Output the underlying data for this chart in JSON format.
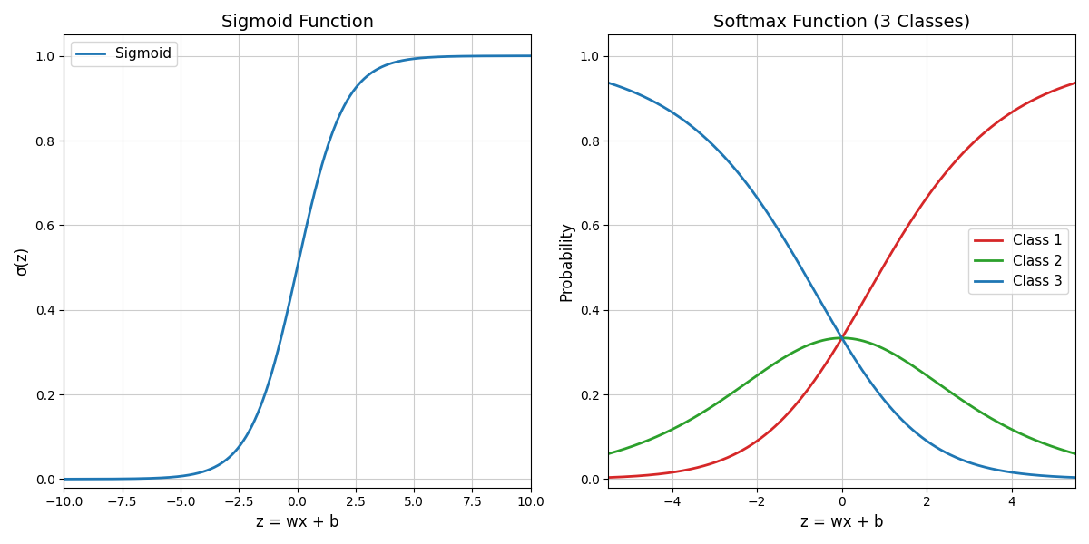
{
  "sigmoid_title": "Sigmoid Function",
  "sigmoid_xlabel": "z = wx + b",
  "sigmoid_ylabel": "σ(z)",
  "sigmoid_legend": "Sigmoid",
  "sigmoid_color": "#1f77b4",
  "sigmoid_xlim": [
    -10,
    10
  ],
  "sigmoid_ylim": [
    -0.02,
    1.05
  ],
  "sigmoid_xticks": [
    -10.0,
    -7.5,
    -5.0,
    -2.5,
    0.0,
    2.5,
    5.0,
    7.5,
    10.0
  ],
  "softmax_title": "Softmax Function (3 Classes)",
  "softmax_xlabel": "z = wx + b",
  "softmax_ylabel": "Probability",
  "softmax_xlim": [
    -5.5,
    5.5
  ],
  "softmax_ylim": [
    -0.02,
    1.05
  ],
  "softmax_xticks": [
    -4,
    -2,
    0,
    2,
    4
  ],
  "softmax_logit_scale": 0.5,
  "class1_color": "#d62728",
  "class2_color": "#2ca02c",
  "class3_color": "#1f77b4",
  "class1_label": "Class 1",
  "class2_label": "Class 2",
  "class3_label": "Class 3",
  "grid_color": "#cccccc",
  "background_color": "#ffffff",
  "title_fontsize": 14,
  "label_fontsize": 12,
  "tick_fontsize": 10,
  "legend_fontsize": 11,
  "line_width": 2.0,
  "figsize": [
    12.0,
    6.0
  ],
  "dpi": 100
}
